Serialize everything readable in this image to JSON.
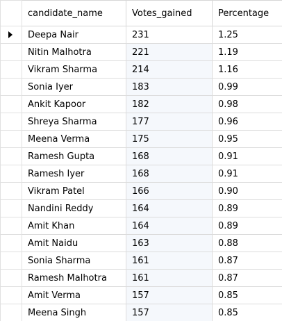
{
  "columns": [
    "candidate_name",
    "Votes_gained",
    "Percentage"
  ],
  "rows": [
    {
      "candidate_name": "Deepa Nair",
      "votes": "231",
      "percentage": "1.25"
    },
    {
      "candidate_name": "Nitin Malhotra",
      "votes": "221",
      "percentage": "1.19"
    },
    {
      "candidate_name": "Vikram Sharma",
      "votes": "214",
      "percentage": "1.16"
    },
    {
      "candidate_name": "Sonia Iyer",
      "votes": "183",
      "percentage": "0.99"
    },
    {
      "candidate_name": "Ankit Kapoor",
      "votes": "182",
      "percentage": "0.98"
    },
    {
      "candidate_name": "Shreya Sharma",
      "votes": "177",
      "percentage": "0.96"
    },
    {
      "candidate_name": "Meena Verma",
      "votes": "175",
      "percentage": "0.95"
    },
    {
      "candidate_name": "Ramesh Gupta",
      "votes": "168",
      "percentage": "0.91"
    },
    {
      "candidate_name": "Ramesh Iyer",
      "votes": "168",
      "percentage": "0.91"
    },
    {
      "candidate_name": "Vikram Patel",
      "votes": "166",
      "percentage": "0.90"
    },
    {
      "candidate_name": "Nandini Reddy",
      "votes": "164",
      "percentage": "0.89"
    },
    {
      "candidate_name": "Amit Khan",
      "votes": "164",
      "percentage": "0.89"
    },
    {
      "candidate_name": "Amit Naidu",
      "votes": "163",
      "percentage": "0.88"
    },
    {
      "candidate_name": "Sonia Sharma",
      "votes": "161",
      "percentage": "0.87"
    },
    {
      "candidate_name": "Ramesh Malhotra",
      "votes": "161",
      "percentage": "0.87"
    },
    {
      "candidate_name": "Amit Verma",
      "votes": "157",
      "percentage": "0.85"
    },
    {
      "candidate_name": "Meena Singh",
      "votes": "157",
      "percentage": "0.85"
    }
  ],
  "current_row_marker": "row-pointer-icon",
  "colors": {
    "grid_line": "#dcdcdc",
    "alt_cell": "#f5f8fc",
    "background": "#ffffff"
  }
}
